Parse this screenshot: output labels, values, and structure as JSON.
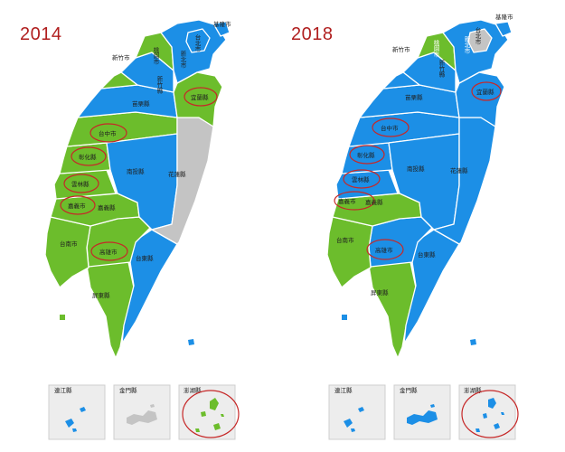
{
  "colors": {
    "green": "#6cbd2c",
    "blue": "#1c8fe6",
    "gray": "#c4c4c4",
    "highlight": "#c62828"
  },
  "maps": [
    {
      "year": "2014",
      "labels": {
        "keelung": "基隆市",
        "hsinchu_city": "新竹市",
        "taoyuan": "桃園市",
        "new_taipei": "新北市",
        "taipei": "台北市",
        "hsinchu_county": "新竹縣",
        "miaoli": "苗栗縣",
        "yilan": "宜蘭縣",
        "taichung": "台中市",
        "changhua": "彰化縣",
        "nantou": "南投縣",
        "hualien": "花蓮縣",
        "yunlin": "雲林縣",
        "chiayi_city": "嘉義市",
        "chiayi_county": "嘉義縣",
        "tainan": "台南市",
        "kaohsiung": "高雄市",
        "taitung": "台東縣",
        "pingtung": "屏東縣",
        "lienchiang": "連江縣",
        "kinmen": "金門縣",
        "penghu": "澎湖縣"
      },
      "region_colors": {
        "keelung": "#1c8fe6",
        "taipei": "#1c8fe6",
        "new_taipei": "#1c8fe6",
        "taoyuan": "#6cbd2c",
        "hsinchu_city": "#6cbd2c",
        "hsinchu_county": "#1c8fe6",
        "miaoli": "#1c8fe6",
        "yilan": "#6cbd2c",
        "taichung": "#6cbd2c",
        "changhua": "#6cbd2c",
        "nantou": "#1c8fe6",
        "hualien": "#c4c4c4",
        "yunlin": "#6cbd2c",
        "chiayi_city": "#6cbd2c",
        "chiayi_county": "#6cbd2c",
        "tainan": "#6cbd2c",
        "kaohsiung": "#6cbd2c",
        "taitung": "#1c8fe6",
        "pingtung": "#6cbd2c",
        "lienchiang": "#1c8fe6",
        "kinmen": "#c4c4c4",
        "penghu": "#6cbd2c"
      },
      "highlighted": [
        "yilan",
        "taichung",
        "changhua",
        "yunlin",
        "chiayi_city",
        "kaohsiung",
        "penghu"
      ]
    },
    {
      "year": "2018",
      "labels": {
        "keelung": "基隆市",
        "hsinchu_city": "新竹市",
        "taoyuan": "桃園市",
        "new_taipei": "新北市",
        "taipei": "台北市",
        "hsinchu_county": "新竹縣",
        "miaoli": "苗栗縣",
        "yilan": "宜蘭縣",
        "taichung": "台中市",
        "changhua": "彰化縣",
        "nantou": "南投縣",
        "hualien": "花蓮縣",
        "yunlin": "雲林縣",
        "chiayi_city": "嘉義市",
        "chiayi_county": "嘉義縣",
        "tainan": "台南市",
        "kaohsiung": "高雄市",
        "taitung": "台東縣",
        "pingtung": "屏東縣",
        "lienchiang": "連江縣",
        "kinmen": "金門縣",
        "penghu": "澎湖縣"
      },
      "region_colors": {
        "keelung": "#1c8fe6",
        "taipei": "#c4c4c4",
        "new_taipei": "#1c8fe6",
        "taoyuan": "#6cbd2c",
        "hsinchu_city": "#1c8fe6",
        "hsinchu_county": "#1c8fe6",
        "miaoli": "#1c8fe6",
        "yilan": "#1c8fe6",
        "taichung": "#1c8fe6",
        "changhua": "#1c8fe6",
        "nantou": "#1c8fe6",
        "hualien": "#1c8fe6",
        "yunlin": "#1c8fe6",
        "chiayi_city": "#6cbd2c",
        "chiayi_county": "#6cbd2c",
        "tainan": "#6cbd2c",
        "kaohsiung": "#1c8fe6",
        "taitung": "#1c8fe6",
        "pingtung": "#6cbd2c",
        "lienchiang": "#1c8fe6",
        "kinmen": "#1c8fe6",
        "penghu": "#1c8fe6"
      },
      "highlighted": [
        "yilan",
        "taichung",
        "changhua",
        "yunlin",
        "chiayi_city",
        "kaohsiung",
        "penghu"
      ]
    }
  ]
}
